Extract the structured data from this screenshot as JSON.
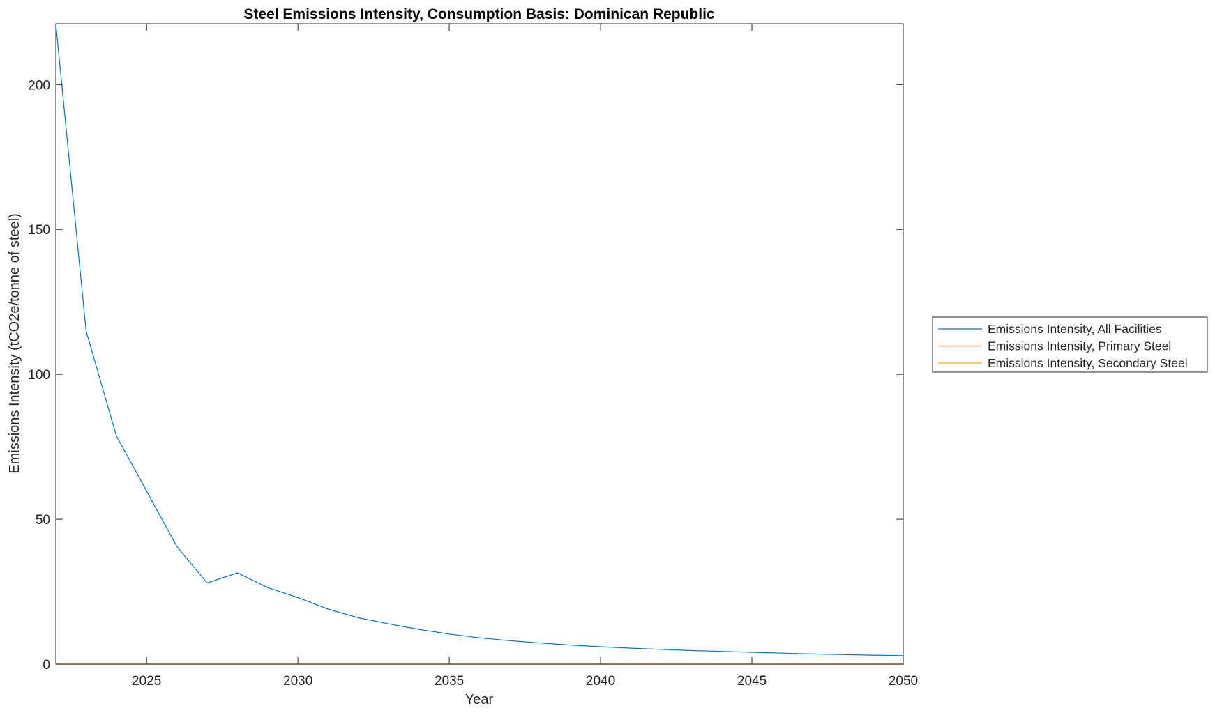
{
  "chart_data": {
    "type": "line",
    "title": "Steel Emissions Intensity, Consumption Basis: Dominican Republic",
    "xlabel": "Year",
    "ylabel": "Emissions Intensity (tCO2e/tonne of steel)",
    "xlim": [
      2022,
      2050
    ],
    "ylim": [
      0,
      221
    ],
    "xticks": [
      2025,
      2030,
      2035,
      2040,
      2045,
      2050
    ],
    "yticks": [
      0,
      50,
      100,
      150,
      200
    ],
    "grid": false,
    "legend_position": "outside-right",
    "x": [
      2022,
      2023,
      2024,
      2025,
      2026,
      2027,
      2028,
      2029,
      2030,
      2031,
      2032,
      2033,
      2034,
      2035,
      2036,
      2037,
      2038,
      2039,
      2040,
      2041,
      2042,
      2043,
      2044,
      2045,
      2046,
      2047,
      2048,
      2049,
      2050
    ],
    "series": [
      {
        "name": "Emissions Intensity, All Facilities",
        "color": "#0072BD",
        "values": [
          221,
          115,
          78.8,
          59.7,
          40.6,
          28,
          31.5,
          26.4,
          23,
          19,
          16,
          13.9,
          12,
          10.4,
          9.1,
          8.1,
          7.3,
          6.6,
          6.0,
          5.5,
          5.1,
          4.7,
          4.4,
          4.1,
          3.8,
          3.5,
          3.3,
          3.1,
          2.9
        ]
      },
      {
        "name": "Emissions Intensity, Primary Steel",
        "color": "#D95319",
        "values": [
          0,
          0,
          0,
          0,
          0,
          0,
          0,
          0,
          0,
          0,
          0,
          0,
          0,
          0,
          0,
          0,
          0,
          0,
          0,
          0,
          0,
          0,
          0,
          0,
          0,
          0,
          0,
          0,
          0
        ]
      },
      {
        "name": "Emissions Intensity, Secondary Steel",
        "color": "#EDB120",
        "values": [
          0,
          0,
          0,
          0,
          0,
          0,
          0,
          0,
          0,
          0,
          0,
          0,
          0,
          0,
          0,
          0,
          0,
          0,
          0,
          0,
          0,
          0,
          0,
          0,
          0,
          0,
          0,
          0,
          0
        ]
      }
    ]
  }
}
